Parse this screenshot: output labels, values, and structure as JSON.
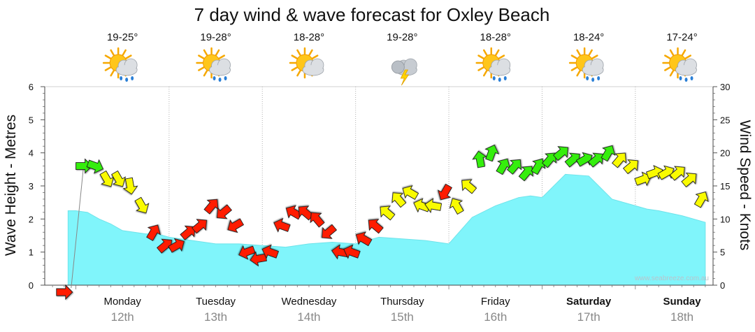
{
  "colors": {
    "wave_fill": "#80f5fb",
    "wave_stroke": "#6ee3ea",
    "wind_red": "#ff1a05",
    "wind_yellow": "#f9fb00",
    "wind_green": "#36ee10",
    "grid": "#b0b0b0"
  },
  "chart_data": {
    "type": "area",
    "title": "7 day wind & wave forecast for Oxley Beach",
    "ylabel_left": "Wave Height - Metres",
    "ylabel_right": "Wind Speed - Knots",
    "ylim_left": [
      0,
      6
    ],
    "ylim_right": [
      0,
      30
    ],
    "yticks_left": [
      "0",
      "1",
      "2",
      "3",
      "4",
      "5",
      "6"
    ],
    "yticks_right": [
      "0",
      "5",
      "10",
      "15",
      "20",
      "25",
      "30"
    ],
    "grid": true,
    "credit": "www.seabreeze.com.au",
    "x_unit": "hours since Monday 00:00",
    "xlim": [
      -8,
      164
    ],
    "days": [
      {
        "name": "Monday",
        "date": "12th",
        "bold": false
      },
      {
        "name": "Tuesday",
        "date": "13th",
        "bold": false
      },
      {
        "name": "Wednesday",
        "date": "14th",
        "bold": false
      },
      {
        "name": "Thursday",
        "date": "15th",
        "bold": false
      },
      {
        "name": "Friday",
        "date": "16th",
        "bold": false
      },
      {
        "name": "Saturday",
        "date": "17th",
        "bold": true
      },
      {
        "name": "Sunday",
        "date": "18th",
        "bold": true
      }
    ],
    "forecast": [
      {
        "temp": "19-25°",
        "weather": "sun-cloud-rain-icon"
      },
      {
        "temp": "19-28°",
        "weather": "sun-cloud-rain-icon"
      },
      {
        "temp": "18-28°",
        "weather": "sun-cloud-icon"
      },
      {
        "temp": "19-28°",
        "weather": "thunderstorm-icon"
      },
      {
        "temp": "18-28°",
        "weather": "sun-cloud-rain-icon"
      },
      {
        "temp": "18-24°",
        "weather": "sun-cloud-rain-icon"
      },
      {
        "temp": "17-24°",
        "weather": "sun-cloud-rain-icon"
      }
    ],
    "wave_series": {
      "name": "Wave Height (m)",
      "x": [
        -2,
        0,
        3,
        6,
        9,
        12,
        15,
        18,
        21,
        24,
        30,
        36,
        42,
        48,
        54,
        60,
        66,
        72,
        78,
        84,
        90,
        96,
        102,
        108,
        114,
        117,
        120,
        126,
        132,
        138,
        144,
        147,
        150,
        156,
        162
      ],
      "y": [
        2.25,
        2.25,
        2.2,
        2.0,
        1.85,
        1.65,
        1.6,
        1.55,
        1.55,
        1.45,
        1.35,
        1.25,
        1.25,
        1.2,
        1.15,
        1.25,
        1.3,
        1.25,
        1.45,
        1.4,
        1.35,
        1.25,
        2.05,
        2.4,
        2.65,
        2.7,
        2.65,
        3.35,
        3.3,
        2.6,
        2.4,
        2.3,
        2.25,
        2.1,
        1.9
      ]
    },
    "wind_series": {
      "name": "Wind Speed (kn)",
      "start_arrow": {
        "x": -3,
        "knots": 0,
        "color": "red",
        "direction_deg": 0
      },
      "x": [
        2,
        5,
        8,
        11,
        14,
        17,
        20,
        23,
        26,
        29,
        32,
        35,
        38,
        41,
        44,
        47,
        50,
        53,
        56,
        59,
        62,
        65,
        68,
        71,
        74,
        77,
        80,
        83,
        86,
        89,
        92,
        95,
        98,
        101,
        104,
        107,
        110,
        113,
        116,
        119,
        122,
        125,
        128,
        131,
        134,
        137,
        140,
        143,
        146,
        149,
        152,
        155,
        158,
        161
      ],
      "knots": [
        18,
        18,
        16,
        16,
        15,
        12,
        8,
        6,
        6,
        8,
        9,
        12,
        11,
        9,
        5,
        4,
        5,
        9,
        11,
        11,
        10,
        8,
        5,
        5,
        7,
        9,
        11,
        13,
        14,
        12,
        12,
        14,
        12,
        15,
        19,
        20,
        18,
        18,
        17,
        18,
        19,
        20,
        19,
        19,
        19,
        20,
        19,
        18,
        16,
        17,
        17,
        17,
        16,
        13
      ],
      "colors": [
        "green",
        "green",
        "yellow",
        "yellow",
        "yellow",
        "yellow",
        "red",
        "red",
        "red",
        "red",
        "red",
        "red",
        "red",
        "red",
        "red",
        "red",
        "red",
        "red",
        "red",
        "red",
        "red",
        "red",
        "red",
        "red",
        "red",
        "red",
        "yellow",
        "yellow",
        "yellow",
        "yellow",
        "yellow",
        "red",
        "yellow",
        "yellow",
        "green",
        "green",
        "green",
        "green",
        "green",
        "green",
        "green",
        "green",
        "green",
        "green",
        "green",
        "green",
        "yellow",
        "yellow",
        "yellow",
        "yellow",
        "yellow",
        "yellow",
        "yellow",
        "yellow"
      ],
      "direction_deg": [
        0,
        20,
        60,
        60,
        80,
        60,
        300,
        320,
        330,
        320,
        320,
        310,
        140,
        150,
        160,
        170,
        200,
        200,
        210,
        220,
        230,
        140,
        190,
        200,
        210,
        220,
        220,
        230,
        210,
        200,
        190,
        120,
        240,
        220,
        260,
        290,
        300,
        310,
        310,
        300,
        310,
        320,
        320,
        330,
        320,
        300,
        310,
        320,
        340,
        340,
        330,
        320,
        320,
        300
      ]
    }
  }
}
